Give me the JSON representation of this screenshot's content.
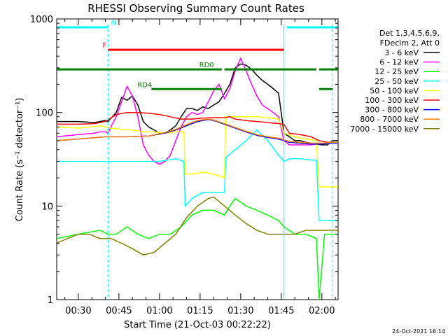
{
  "chart_data": {
    "type": "line",
    "title": "RHESSI Observing Summary Count Rates",
    "xlabel": "Start Time (21-Oct-03 00:22:22)",
    "ylabel": "Count Rate (s⁻¹ detector⁻¹)",
    "yscale": "log",
    "ylim": [
      1,
      1000
    ],
    "xlim_minutes": [
      22,
      126
    ],
    "x_unit": "minutes since 00:00 UT on 21-Oct-03",
    "y_tick_labels": [
      "1",
      "10",
      "100",
      "1000"
    ],
    "x_tick_labels": [
      "00:30",
      "00:45",
      "01:00",
      "01:15",
      "01:30",
      "01:45",
      "02:00"
    ],
    "x_tick_values_minutes": [
      30,
      45,
      60,
      75,
      90,
      105,
      120
    ],
    "grid": false,
    "legend_position": "right",
    "legend_header": [
      "Det 1,3,4,5,6,9,",
      "FDecim 2, Att 0"
    ],
    "footer_stamp": "24-Oct-2021 16:14",
    "flags": [
      {
        "label": "N",
        "color": "#00ffff",
        "segments": [
          [
            22,
            41
          ],
          [
            107,
            126
          ]
        ],
        "level": 0.97
      },
      {
        "label": "F",
        "color": "#ff0000",
        "segments": [
          [
            41,
            106
          ]
        ],
        "level": 0.89
      },
      {
        "label": "RD0",
        "color": "#008000",
        "segments": [
          [
            22,
            83
          ],
          [
            84,
            118
          ],
          [
            119,
            126
          ]
        ],
        "level": 0.82
      },
      {
        "label": "RD4",
        "color": "#008000",
        "segments": [
          [
            57,
            83
          ],
          [
            119,
            124
          ]
        ],
        "level": 0.75
      }
    ],
    "vertical_lines": [
      {
        "x": 41,
        "color": "#00ffff",
        "style": "dashed"
      },
      {
        "x": 106,
        "color": "#00ffff",
        "style": "solid"
      },
      {
        "x": 124,
        "color": "#00ffff",
        "style": "dashed"
      }
    ],
    "series": [
      {
        "name": "3 - 6 keV",
        "color": "#000000",
        "x": [
          22,
          30,
          36,
          38,
          40,
          41,
          44,
          46,
          48,
          50,
          52,
          54,
          56,
          58,
          60,
          62,
          64,
          66,
          68,
          70,
          72,
          74,
          76,
          78,
          80,
          82,
          84,
          86,
          88,
          90,
          92,
          94,
          96,
          98,
          100,
          102,
          104,
          106,
          108,
          110,
          112,
          114,
          116,
          118,
          120,
          122,
          124,
          126
        ],
        "y": [
          80,
          80,
          78,
          80,
          82,
          80,
          100,
          145,
          135,
          150,
          120,
          80,
          70,
          65,
          60,
          60,
          65,
          72,
          90,
          110,
          110,
          105,
          115,
          110,
          120,
          130,
          160,
          200,
          300,
          330,
          320,
          290,
          250,
          220,
          200,
          180,
          160,
          60,
          55,
          50,
          50,
          48,
          47,
          46,
          45,
          45,
          50,
          50
        ]
      },
      {
        "name": "6 - 12 keV",
        "color": "#ff00ff",
        "x": [
          22,
          30,
          36,
          38,
          40,
          41,
          42,
          44,
          46,
          48,
          50,
          52,
          54,
          56,
          58,
          60,
          62,
          64,
          66,
          68,
          70,
          72,
          74,
          76,
          78,
          80,
          82,
          84,
          86,
          88,
          90,
          92,
          94,
          96,
          98,
          100,
          102,
          104,
          106,
          108,
          110,
          112,
          114,
          116,
          118,
          120,
          122,
          124,
          126
        ],
        "y": [
          55,
          58,
          60,
          62,
          62,
          60,
          70,
          90,
          130,
          190,
          150,
          90,
          45,
          35,
          30,
          28,
          30,
          35,
          50,
          70,
          90,
          100,
          95,
          100,
          130,
          170,
          200,
          140,
          180,
          280,
          380,
          280,
          200,
          150,
          120,
          110,
          100,
          90,
          50,
          45,
          45,
          45,
          45,
          45,
          46,
          46,
          47,
          48,
          48
        ]
      },
      {
        "name": "12 - 25 keV",
        "color": "#00ff00",
        "x": [
          22,
          30,
          38,
          41,
          44,
          48,
          52,
          56,
          60,
          64,
          68,
          72,
          76,
          80,
          84,
          86,
          88,
          90,
          92,
          96,
          100,
          104,
          106,
          110,
          114,
          118,
          119,
          121,
          126
        ],
        "y": [
          4.5,
          5,
          5.5,
          5,
          5,
          6,
          5,
          4.5,
          5,
          5,
          6,
          8,
          9,
          9,
          8,
          10,
          12,
          11,
          10,
          9,
          8,
          7,
          6,
          5,
          5,
          4.5,
          1,
          5,
          5
        ]
      },
      {
        "name": "25 - 50 keV",
        "color": "#00ffff",
        "x": [
          22,
          30,
          40,
          44,
          50,
          56,
          60,
          66,
          69,
          69.5,
          72,
          76,
          80,
          84,
          84.5,
          88,
          92,
          96,
          100,
          104,
          106,
          108,
          112,
          116,
          118,
          119,
          121,
          126
        ],
        "y": [
          30,
          30,
          30,
          30,
          30,
          30,
          30,
          32,
          30,
          10,
          12,
          14,
          14,
          14,
          33,
          40,
          50,
          65,
          50,
          35,
          30,
          32,
          32,
          31,
          31,
          7,
          7,
          7
        ]
      },
      {
        "name": "50 - 100 keV",
        "color": "#ffff00",
        "x": [
          22,
          30,
          38,
          42,
          46,
          50,
          54,
          58,
          62,
          66,
          69,
          69.5,
          72,
          76,
          80,
          84,
          84.5,
          88,
          92,
          96,
          100,
          104,
          106,
          110,
          114,
          118,
          119,
          121,
          126
        ],
        "y": [
          70,
          68,
          72,
          68,
          66,
          65,
          62,
          62,
          60,
          62,
          62,
          22,
          22,
          23,
          22,
          20,
          90,
          90,
          90,
          90,
          88,
          85,
          60,
          55,
          52,
          50,
          16,
          16,
          16
        ]
      },
      {
        "name": "100 - 300 keV",
        "color": "#ff0000",
        "x": [
          22,
          30,
          36,
          40,
          44,
          48,
          52,
          56,
          60,
          64,
          68,
          72,
          76,
          80,
          84,
          86,
          88,
          92,
          96,
          100,
          104,
          106,
          108,
          112,
          116,
          119,
          122,
          126
        ],
        "y": [
          75,
          75,
          76,
          80,
          95,
          100,
          100,
          98,
          95,
          90,
          85,
          85,
          87,
          88,
          88,
          90,
          85,
          82,
          80,
          78,
          76,
          75,
          60,
          58,
          55,
          50,
          48,
          48
        ]
      },
      {
        "name": "300 - 800 keV",
        "color": "#0000ff",
        "x": [
          22,
          30,
          40,
          48,
          56,
          62,
          66,
          70,
          74,
          78,
          80,
          84,
          88,
          92,
          96,
          100,
          104,
          106,
          108,
          112,
          116,
          120,
          124,
          126
        ],
        "y": [
          50,
          52,
          55,
          55,
          56,
          60,
          65,
          72,
          80,
          84,
          82,
          75,
          68,
          62,
          57,
          54,
          52,
          50,
          48,
          47,
          46,
          46,
          47,
          47
        ]
      },
      {
        "name": "800 - 7000 keV",
        "color": "#ff8000",
        "x": [
          22,
          30,
          40,
          48,
          56,
          62,
          66,
          70,
          74,
          78,
          80,
          84,
          88,
          92,
          96,
          100,
          104,
          106,
          108,
          112,
          116,
          120,
          124,
          126
        ],
        "y": [
          50,
          52,
          55,
          55,
          56,
          61,
          66,
          74,
          82,
          85,
          83,
          76,
          69,
          63,
          58,
          55,
          53,
          51,
          49,
          48,
          47,
          47,
          48,
          48
        ]
      },
      {
        "name": "7000 - 15000 keV",
        "color": "#808000",
        "x": [
          22,
          26,
          30,
          34,
          38,
          42,
          46,
          50,
          54,
          58,
          62,
          66,
          70,
          74,
          78,
          80,
          84,
          88,
          92,
          96,
          100,
          104,
          106,
          110,
          114,
          118,
          122,
          126
        ],
        "y": [
          4,
          4.5,
          5,
          5,
          4.5,
          4.5,
          4,
          3.5,
          3,
          3.2,
          4,
          5,
          7.5,
          10,
          12,
          12.5,
          10,
          8,
          6.5,
          5.5,
          5,
          5,
          5,
          5,
          5.5,
          5.5,
          5.5,
          5.5
        ]
      }
    ]
  }
}
